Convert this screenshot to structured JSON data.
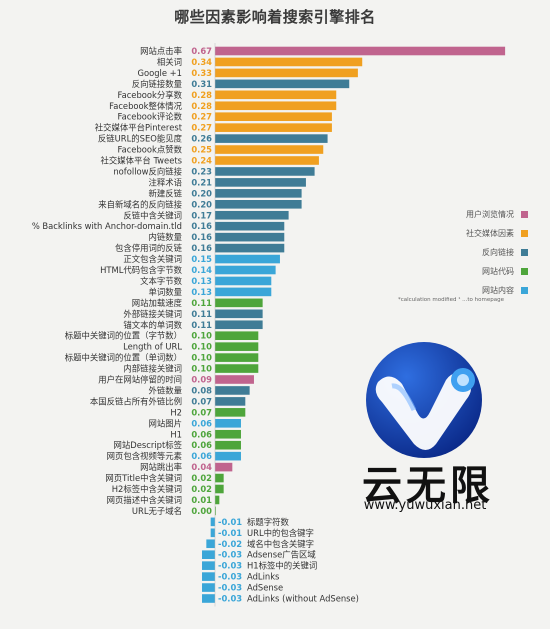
{
  "chart_data": {
    "type": "bar",
    "orientation": "horizontal",
    "title": "哪些因素影响着搜索引擎排名",
    "categories": [
      "网站点击率",
      "相关词",
      "Google +1",
      "反向链接数量",
      "Facebook分享数",
      "Facebook整体情况",
      "Facebook评论数",
      "社交媒体平台Pinterest",
      "反链URL的SEO能见度",
      "Facebook点赞数",
      "社交媒体平台 Tweets",
      "nofollow反向链接",
      "注释术语",
      "新建反链",
      "来自新域名的反向链接",
      "反链中含关键词",
      "% Backlinks with Anchor-domain.tld",
      "内链数量",
      "包含停用词的反链",
      "正文包含关键词",
      "HTML代码包含字节数",
      "文本字节数",
      "单词数量",
      "网站加载速度",
      "外部链接关键词",
      "锚文本的单词数",
      "标题中关键词的位置（字节数）",
      "Length of URL",
      "标题中关键词的位置（单词数）",
      "内部链接关键词",
      "用户在网站停留的时间",
      "外链数量",
      "本国反链占所有外链比例",
      "H2",
      "网站图片",
      "H1",
      "网站Descript标签",
      "网页包含视频等元素",
      "网站跳出率",
      "网页Title中含关键词",
      "H2标签中含关键词",
      "网页描述中含关键词",
      "URL无子域名",
      "标题字符数",
      "URL中的包含键字",
      "域名中包含关键字",
      "Adsense广告区域",
      "H1标签中的关键词",
      "AdLinks",
      "AdSense",
      "AdLinks (without AdSense)"
    ],
    "values": [
      0.67,
      0.34,
      0.33,
      0.31,
      0.28,
      0.28,
      0.27,
      0.27,
      0.26,
      0.25,
      0.24,
      0.23,
      0.21,
      0.2,
      0.2,
      0.17,
      0.16,
      0.16,
      0.16,
      0.15,
      0.14,
      0.13,
      0.13,
      0.11,
      0.11,
      0.11,
      0.1,
      0.1,
      0.1,
      0.1,
      0.09,
      0.08,
      0.07,
      0.07,
      0.06,
      0.06,
      0.06,
      0.06,
      0.04,
      0.02,
      0.02,
      0.01,
      0.0,
      -0.01,
      -0.01,
      -0.02,
      -0.03,
      -0.03,
      -0.03,
      -0.03,
      -0.03
    ],
    "value_labels": [
      "0.67",
      "0.34",
      "0.33",
      "0.31",
      "0.28",
      "0.28",
      "0.27",
      "0.27",
      "0.26",
      "0.25",
      "0.24",
      "0.23",
      "0.21",
      "0.20",
      "0.20",
      "0.17",
      "0.16",
      "0.16",
      "0.16",
      "0.15",
      "0.14",
      "0.13",
      "0.13",
      "0.11",
      "0.11",
      "0.11",
      "0.10",
      "0.10",
      "0.10",
      "0.10",
      "0.09",
      "0.08",
      "0.07",
      "0.07",
      "0.06",
      "0.06",
      "0.06",
      "0.06",
      "0.04",
      "0.02",
      "0.02",
      "0.01",
      "0.00",
      "-0.01",
      "-0.01",
      "-0.02",
      "-0.03",
      "-0.03",
      "-0.03",
      "-0.03",
      "-0.03"
    ],
    "groups": [
      "user",
      "social",
      "social",
      "backlink",
      "social",
      "social",
      "social",
      "social",
      "backlink",
      "social",
      "social",
      "backlink",
      "backlink",
      "backlink",
      "backlink",
      "backlink",
      "backlink",
      "backlink",
      "backlink",
      "content",
      "content",
      "content",
      "content",
      "code",
      "backlink",
      "backlink",
      "code",
      "code",
      "code",
      "code",
      "user",
      "backlink",
      "backlink",
      "code",
      "content",
      "code",
      "code",
      "content",
      "user",
      "code",
      "code",
      "code",
      "code",
      "content",
      "content",
      "content",
      "content",
      "content",
      "content",
      "content",
      "content"
    ],
    "legend": [
      {
        "key": "user",
        "label": "用户浏览情况",
        "color": "#c0648e"
      },
      {
        "key": "social",
        "label": "社交媒体因素",
        "color": "#f0a020"
      },
      {
        "key": "backlink",
        "label": "反向链接",
        "color": "#3f7c96"
      },
      {
        "key": "code",
        "label": "网站代码",
        "color": "#4ea53b"
      },
      {
        "key": "content",
        "label": "网站内容",
        "color": "#3aa6d8"
      }
    ],
    "legend_position": "right",
    "note": "*calculation modified    ¹ ...to homepage",
    "xlim": [
      -0.03,
      0.67
    ],
    "grid": false
  },
  "logo": {
    "name": "云无限",
    "url": "www.yuwuxian.net"
  }
}
